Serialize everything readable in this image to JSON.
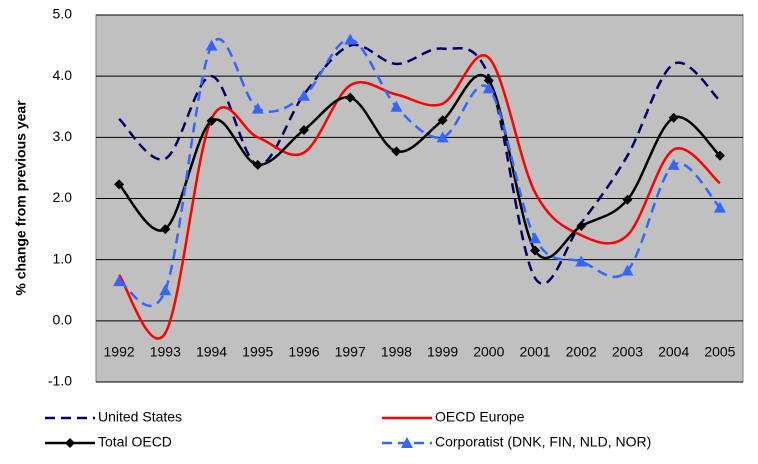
{
  "chart_data": {
    "type": "line",
    "y_label": "% change from previous year",
    "categories": [
      "1992",
      "1993",
      "1994",
      "1995",
      "1996",
      "1997",
      "1998",
      "1999",
      "2000",
      "2001",
      "2002",
      "2003",
      "2004",
      "2005"
    ],
    "series": [
      {
        "name": "United States",
        "color": "#000066",
        "dash": true,
        "marker": null,
        "values": [
          3.3,
          2.65,
          4.0,
          2.55,
          3.7,
          4.5,
          4.2,
          4.45,
          4.0,
          0.7,
          1.6,
          2.7,
          4.2,
          3.6
        ]
      },
      {
        "name": "OECD Europe",
        "color": "#ff0000",
        "dash": false,
        "marker": null,
        "values": [
          0.75,
          -0.2,
          3.3,
          3.0,
          2.75,
          3.85,
          3.7,
          3.55,
          4.3,
          2.1,
          1.4,
          1.4,
          2.8,
          2.25
        ]
      },
      {
        "name": "Total OECD",
        "color": "#000000",
        "dash": false,
        "marker": "diamond",
        "values": [
          2.23,
          1.5,
          3.27,
          2.55,
          3.12,
          3.65,
          2.77,
          3.28,
          3.93,
          1.15,
          1.55,
          1.98,
          3.32,
          2.7
        ]
      },
      {
        "name": "Corporatist (DNK, FIN, NLD, NOR)",
        "color": "#3366ff",
        "dash": true,
        "marker": "triangle",
        "values": [
          0.65,
          0.5,
          4.5,
          3.47,
          3.68,
          4.6,
          3.5,
          3.0,
          3.8,
          1.35,
          0.97,
          0.82,
          2.55,
          1.85
        ]
      }
    ],
    "ylim": [
      -1,
      5
    ],
    "yticks": [
      {
        "value": -1,
        "label": "-1.0"
      },
      {
        "value": 0,
        "label": "0.0"
      },
      {
        "value": 1,
        "label": "1.0"
      },
      {
        "value": 2,
        "label": "2.0"
      },
      {
        "value": 3,
        "label": "3.0"
      },
      {
        "value": 4,
        "label": "4.0"
      },
      {
        "value": 5,
        "label": "5.0"
      }
    ],
    "grid": true,
    "plot_background": "#c0c0c0"
  }
}
